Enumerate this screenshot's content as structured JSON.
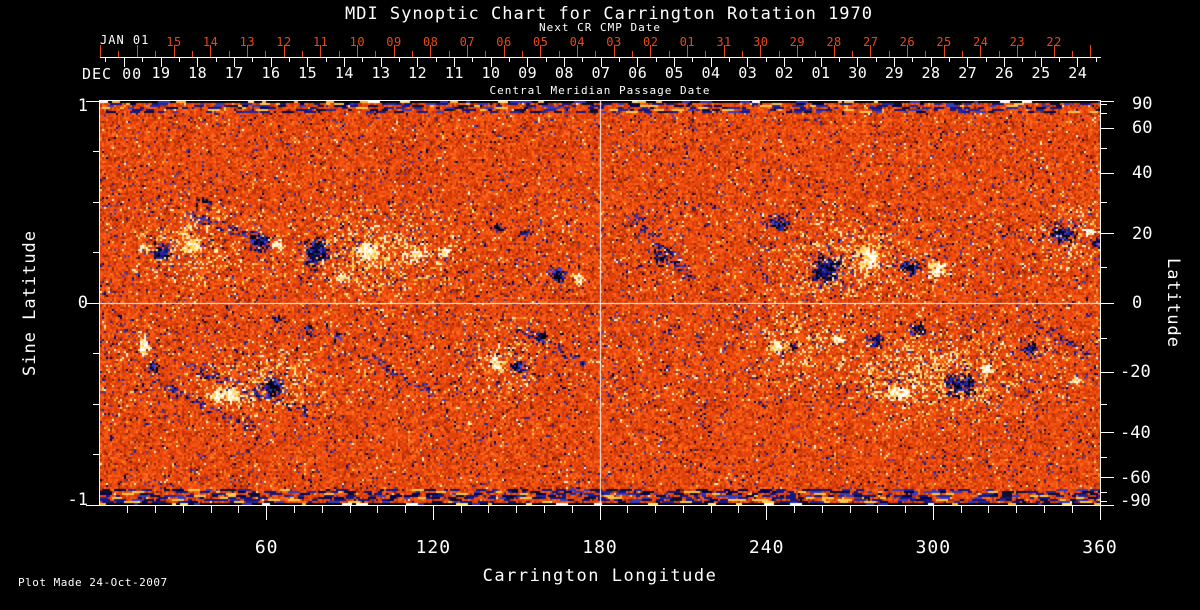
{
  "title": "MDI Synoptic Chart for Carrington Rotation 1970",
  "next_cr_axis": {
    "caption": "Next CR CMP Date",
    "month_year_label": "JAN 01",
    "day_labels": [
      "15",
      "14",
      "13",
      "12",
      "11",
      "10",
      "09",
      "08",
      "07",
      "06",
      "05",
      "04",
      "03",
      "02",
      "01",
      "31",
      "30",
      "29",
      "28",
      "27",
      "26",
      "25",
      "24",
      "23",
      "22"
    ],
    "color": "#e8491a"
  },
  "cmp_axis": {
    "caption": "Central Meridian Passage Date",
    "month_year_label": "DEC 00",
    "day_labels": [
      "19",
      "18",
      "17",
      "16",
      "15",
      "14",
      "13",
      "12",
      "11",
      "10",
      "09",
      "08",
      "07",
      "06",
      "05",
      "04",
      "03",
      "02",
      "01",
      "30",
      "29",
      "28",
      "27",
      "26",
      "25",
      "24"
    ],
    "color": "#ffffff"
  },
  "bottom_axis": {
    "label": "Carrington Longitude",
    "tick_labels": [
      "60",
      "120",
      "180",
      "240",
      "300",
      "360"
    ]
  },
  "left_axis": {
    "label": "Sine Latitude",
    "tick_labels": [
      "1",
      "0",
      "-1"
    ]
  },
  "right_axis": {
    "label": "Latitude",
    "tick_labels": [
      "90",
      "60",
      "40",
      "20",
      "0",
      "-20",
      "-40",
      "-60",
      "-90"
    ]
  },
  "footer": {
    "note": "Plot Made 24-Oct-2007"
  },
  "chart_data": {
    "type": "heatmap",
    "title": "MDI Synoptic Chart for Carrington Rotation 1970",
    "xlabel": "Carrington Longitude",
    "ylabel_left": "Sine Latitude",
    "ylabel_right": "Latitude",
    "xlim": [
      0,
      360
    ],
    "ylim_sine_latitude": [
      -1,
      1
    ],
    "x_major_ticks": [
      60,
      120,
      180,
      240,
      300,
      360
    ],
    "x_minor_step_deg": 10,
    "left_major_ticks": [
      1,
      0,
      -1
    ],
    "left_minor_step": 0.25,
    "right_tick_latitudes": [
      90,
      60,
      40,
      20,
      0,
      -20,
      -40,
      -60,
      -90
    ],
    "right_minor_latitudes": [
      80,
      70,
      50,
      30,
      10,
      -10,
      -30,
      -50,
      -70,
      -80
    ],
    "reference_lines": {
      "meridian_longitude": 180,
      "equator_sine_latitude": 0,
      "color": "#ffffff"
    },
    "field_encoding": "negative polarity = black/dark blue, positive polarity = white/yellow, weak field = orange/red mottle",
    "palette": {
      "background_ramp": [
        "#8f2605",
        "#b83106",
        "#d23a07",
        "#e4420b",
        "#ee4d0f",
        "#f75a13",
        "#ff681a",
        "#ff7c26"
      ],
      "negative_speckle": [
        "#16167f",
        "#26269a",
        "#3b3bbb",
        "#00004e"
      ],
      "positive_speckle": [
        "#ffb83c",
        "#ffd25e",
        "#ffe99d",
        "#fff6cf"
      ],
      "negative_core": [
        "#04040d",
        "#14147c",
        "#2a2aa4",
        "#4848cc"
      ],
      "positive_core": [
        "#ffffff",
        "#fff3c9",
        "#ffe186",
        "#ffcf4e"
      ],
      "dark_maroon": "#701c03"
    },
    "active_regions": [
      {
        "lon": 21.6,
        "slat": 0.26,
        "size": 4.0,
        "pol": "neg",
        "den": 0.85,
        "ex": 1.1,
        "ey": 1.0
      },
      {
        "lon": 15.5,
        "slat": 0.28,
        "size": 1.8,
        "pol": "pos",
        "den": 0.8,
        "ex": 1.0,
        "ey": 1.0
      },
      {
        "lon": 32.4,
        "slat": 0.29,
        "size": 3.2,
        "pol": "pos",
        "den": 0.8,
        "ex": 1.2,
        "ey": 1.0
      },
      {
        "lon": 37.8,
        "slat": 0.51,
        "size": 2.9,
        "pol": "neg",
        "den": 0.3,
        "ex": 1.4,
        "ey": 0.8
      },
      {
        "lon": 56.9,
        "slat": 0.31,
        "size": 4.3,
        "pol": "neg",
        "den": 0.8,
        "ex": 1.0,
        "ey": 1.1
      },
      {
        "lon": 63.4,
        "slat": 0.3,
        "size": 2.5,
        "pol": "pos",
        "den": 0.8,
        "ex": 1.0,
        "ey": 1.0
      },
      {
        "lon": 77.4,
        "slat": 0.26,
        "size": 6.1,
        "pol": "neg",
        "den": 0.8,
        "ex": 0.9,
        "ey": 1.2
      },
      {
        "lon": 86.4,
        "slat": 0.13,
        "size": 2.2,
        "pol": "pos",
        "den": 0.9,
        "ex": 1.0,
        "ey": 1.0
      },
      {
        "lon": 95.4,
        "slat": 0.27,
        "size": 4.7,
        "pol": "pos",
        "den": 0.75,
        "ex": 1.1,
        "ey": 1.0
      },
      {
        "lon": 113.4,
        "slat": 0.25,
        "size": 3.6,
        "pol": "pos",
        "den": 0.45,
        "ex": 1.3,
        "ey": 1.0
      },
      {
        "lon": 123.5,
        "slat": 0.26,
        "size": 2.5,
        "pol": "pos",
        "den": 0.7,
        "ex": 1.0,
        "ey": 1.0
      },
      {
        "lon": 142.9,
        "slat": 0.38,
        "size": 2.5,
        "pol": "neg",
        "den": 0.4,
        "ex": 1.2,
        "ey": 1.0
      },
      {
        "lon": 152.3,
        "slat": 0.35,
        "size": 2.2,
        "pol": "neg",
        "den": 0.7,
        "ex": 1.0,
        "ey": 1.0
      },
      {
        "lon": 164.2,
        "slat": 0.15,
        "size": 3.2,
        "pol": "neg",
        "den": 0.85,
        "ex": 1.0,
        "ey": 1.0
      },
      {
        "lon": 171.7,
        "slat": 0.13,
        "size": 2.5,
        "pol": "pos",
        "den": 0.8,
        "ex": 1.0,
        "ey": 1.0
      },
      {
        "lon": 201.6,
        "slat": 0.24,
        "size": 5.0,
        "pol": "neg",
        "den": 0.3,
        "ex": 1.2,
        "ey": 1.0
      },
      {
        "lon": 243.7,
        "slat": 0.4,
        "size": 4.0,
        "pol": "neg",
        "den": 0.8,
        "ex": 1.2,
        "ey": 0.9
      },
      {
        "lon": 261.0,
        "slat": 0.17,
        "size": 6.8,
        "pol": "neg",
        "den": 0.7,
        "ex": 1.0,
        "ey": 1.15
      },
      {
        "lon": 276.5,
        "slat": 0.24,
        "size": 5.0,
        "pol": "pos",
        "den": 0.7,
        "ex": 0.8,
        "ey": 1.4
      },
      {
        "lon": 290.9,
        "slat": 0.19,
        "size": 4.0,
        "pol": "neg",
        "den": 0.8,
        "ex": 1.2,
        "ey": 0.9
      },
      {
        "lon": 301.0,
        "slat": 0.17,
        "size": 4.0,
        "pol": "pos",
        "den": 0.75,
        "ex": 1.0,
        "ey": 1.1
      },
      {
        "lon": 346.3,
        "slat": 0.35,
        "size": 4.7,
        "pol": "neg",
        "den": 0.85,
        "ex": 1.2,
        "ey": 0.9
      },
      {
        "lon": 355.7,
        "slat": 0.36,
        "size": 2.2,
        "pol": "pos",
        "den": 0.85,
        "ex": 1.0,
        "ey": 1.0
      },
      {
        "lon": 358.0,
        "slat": 0.3,
        "size": 2.0,
        "pol": "neg",
        "den": 0.7,
        "ex": 1.0,
        "ey": 1.0
      },
      {
        "lon": 15.5,
        "slat": -0.22,
        "size": 3.2,
        "pol": "pos",
        "den": 0.75,
        "ex": 0.8,
        "ey": 1.4
      },
      {
        "lon": 18.7,
        "slat": -0.31,
        "size": 2.2,
        "pol": "neg",
        "den": 0.8,
        "ex": 1.0,
        "ey": 1.0
      },
      {
        "lon": 45.0,
        "slat": -0.45,
        "size": 5.4,
        "pol": "pos",
        "den": 0.8,
        "ex": 1.6,
        "ey": 0.7
      },
      {
        "lon": 61.9,
        "slat": -0.41,
        "size": 4.7,
        "pol": "neg",
        "den": 0.85,
        "ex": 1.0,
        "ey": 1.0
      },
      {
        "lon": 63.4,
        "slat": -0.07,
        "size": 1.8,
        "pol": "neg",
        "den": 0.7,
        "ex": 1.0,
        "ey": 1.0
      },
      {
        "lon": 74.9,
        "slat": -0.13,
        "size": 2.2,
        "pol": "neg",
        "den": 0.6,
        "ex": 0.9,
        "ey": 1.3
      },
      {
        "lon": 85.0,
        "slat": -0.16,
        "size": 2.2,
        "pol": "neg",
        "den": 0.6,
        "ex": 1.0,
        "ey": 1.0
      },
      {
        "lon": 141.8,
        "slat": -0.29,
        "size": 3.2,
        "pol": "pos",
        "den": 0.8,
        "ex": 1.0,
        "ey": 1.0
      },
      {
        "lon": 150.1,
        "slat": -0.31,
        "size": 2.9,
        "pol": "neg",
        "den": 0.75,
        "ex": 1.0,
        "ey": 1.0
      },
      {
        "lon": 158.4,
        "slat": -0.16,
        "size": 2.5,
        "pol": "neg",
        "den": 0.6,
        "ex": 1.0,
        "ey": 1.0
      },
      {
        "lon": 243.4,
        "slat": -0.21,
        "size": 2.9,
        "pol": "pos",
        "den": 0.8,
        "ex": 1.0,
        "ey": 1.0
      },
      {
        "lon": 249.5,
        "slat": -0.21,
        "size": 1.8,
        "pol": "neg",
        "den": 0.85,
        "ex": 1.0,
        "ey": 1.0
      },
      {
        "lon": 264.9,
        "slat": -0.17,
        "size": 2.5,
        "pol": "pos",
        "den": 0.8,
        "ex": 1.0,
        "ey": 1.0
      },
      {
        "lon": 279.4,
        "slat": -0.18,
        "size": 3.2,
        "pol": "neg",
        "den": 0.75,
        "ex": 1.0,
        "ey": 1.0
      },
      {
        "lon": 293.8,
        "slat": -0.12,
        "size": 3.2,
        "pol": "neg",
        "den": 0.7,
        "ex": 1.0,
        "ey": 1.0
      },
      {
        "lon": 287.3,
        "slat": -0.44,
        "size": 4.7,
        "pol": "pos",
        "den": 0.8,
        "ex": 1.3,
        "ey": 0.8
      },
      {
        "lon": 309.6,
        "slat": -0.4,
        "size": 6.1,
        "pol": "neg",
        "den": 0.7,
        "ex": 1.1,
        "ey": 1.0
      },
      {
        "lon": 318.6,
        "slat": -0.32,
        "size": 2.9,
        "pol": "pos",
        "den": 0.75,
        "ex": 1.0,
        "ey": 1.0
      },
      {
        "lon": 334.8,
        "slat": -0.22,
        "size": 3.6,
        "pol": "neg",
        "den": 0.75,
        "ex": 1.0,
        "ey": 1.2
      },
      {
        "lon": 351.0,
        "slat": -0.38,
        "size": 2.5,
        "pol": "pos",
        "den": 0.5,
        "ex": 1.3,
        "ey": 1.0
      }
    ],
    "plage_patches": [
      {
        "lon": 32,
        "slat": 0.27,
        "sx": 10,
        "sy": 0.1,
        "boost": 0.25
      },
      {
        "lon": 100,
        "slat": 0.24,
        "sx": 18,
        "sy": 0.12,
        "boost": 0.3
      },
      {
        "lon": 60,
        "slat": -0.4,
        "sx": 12,
        "sy": 0.1,
        "boost": 0.3
      },
      {
        "lon": 145,
        "slat": -0.28,
        "sx": 8,
        "sy": 0.1,
        "boost": 0.2
      },
      {
        "lon": 270,
        "slat": 0.2,
        "sx": 15,
        "sy": 0.12,
        "boost": 0.3
      },
      {
        "lon": 300,
        "slat": -0.35,
        "sx": 20,
        "sy": 0.12,
        "boost": 0.35
      },
      {
        "lon": 250,
        "slat": -0.2,
        "sx": 10,
        "sy": 0.1,
        "boost": 0.2
      },
      {
        "lon": 350,
        "slat": 0.3,
        "sx": 8,
        "sy": 0.1,
        "boost": 0.2
      }
    ],
    "negative_streaks": [
      {
        "a": [
          18,
          -0.38
        ],
        "b": [
          55,
          -0.62
        ]
      },
      {
        "a": [
          30,
          -0.3
        ],
        "b": [
          75,
          -0.55
        ]
      },
      {
        "a": [
          95,
          -0.25
        ],
        "b": [
          120,
          -0.45
        ]
      },
      {
        "a": [
          30,
          0.45
        ],
        "b": [
          62,
          0.3
        ]
      },
      {
        "a": [
          190,
          0.45
        ],
        "b": [
          213,
          0.12
        ]
      },
      {
        "a": [
          335,
          -0.08
        ],
        "b": [
          356,
          -0.26
        ]
      },
      {
        "a": [
          150,
          -0.12
        ],
        "b": [
          175,
          -0.3
        ]
      }
    ],
    "polar_noise_bands": true
  }
}
